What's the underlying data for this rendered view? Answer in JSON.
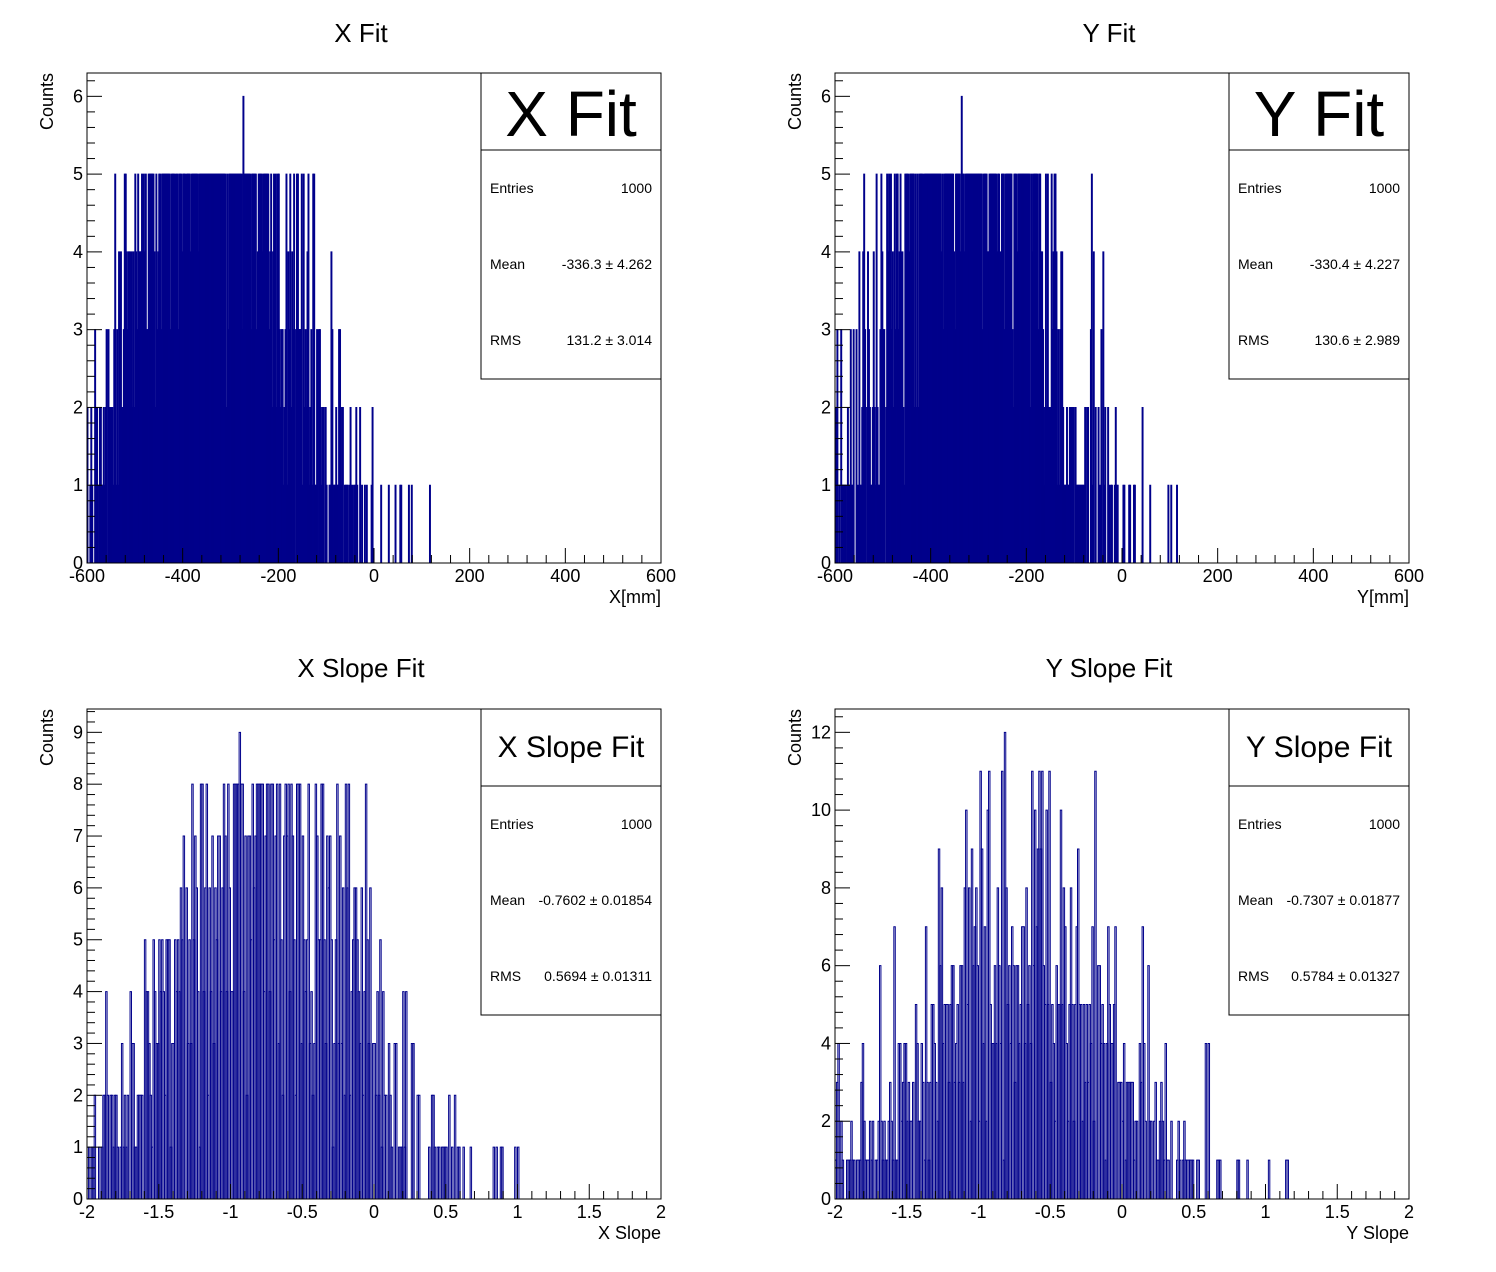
{
  "hist_color": "#00008b",
  "panels": [
    {
      "title": "X Fit",
      "xlabel": "X[mm]",
      "ylabel": "Counts",
      "stats": {
        "title": "X Fit",
        "entries_label": "Entries",
        "entries": "1000",
        "mean_label": "Mean",
        "mean": "-336.3 ±  4.262",
        "rms_label": "RMS",
        "rms": "131.2 ±  3.014"
      }
    },
    {
      "title": "Y Fit",
      "xlabel": "Y[mm]",
      "ylabel": "Counts",
      "stats": {
        "title": "Y Fit",
        "entries_label": "Entries",
        "entries": "1000",
        "mean_label": "Mean",
        "mean": "-330.4 ±  4.227",
        "rms_label": "RMS",
        "rms": "130.6 ±  2.989"
      }
    },
    {
      "title": "X Slope Fit",
      "xlabel": "X Slope",
      "ylabel": "Counts",
      "stats": {
        "title": "X Slope Fit",
        "entries_label": "Entries",
        "entries": "1000",
        "mean_label": "Mean",
        "mean": "-0.7602 ± 0.01854",
        "rms_label": "RMS",
        "rms": "0.5694 ± 0.01311"
      }
    },
    {
      "title": "Y Slope Fit",
      "xlabel": "Y Slope",
      "ylabel": "Counts",
      "stats": {
        "title": "Y Slope Fit",
        "entries_label": "Entries",
        "entries": "1000",
        "mean_label": "Mean",
        "mean": "-0.7307 ± 0.01877",
        "rms_label": "RMS",
        "rms": "0.5784 ± 0.01327"
      }
    }
  ],
  "chart_data": [
    {
      "type": "bar",
      "title": "X Fit",
      "xlabel": "X[mm]",
      "ylabel": "Counts",
      "xlim": [
        -600,
        600
      ],
      "ylim": [
        0,
        6.3
      ],
      "xticks": [
        -600,
        -400,
        -200,
        0,
        200,
        400,
        600
      ],
      "yticks": [
        0,
        1,
        2,
        3,
        4,
        5,
        6
      ],
      "bin_width": 2,
      "peak_count": 6,
      "peak_x": -273,
      "mean": -336.3,
      "rms": 131.2,
      "entries": 1000
    },
    {
      "type": "bar",
      "title": "Y Fit",
      "xlabel": "Y[mm]",
      "ylabel": "Counts",
      "xlim": [
        -600,
        600
      ],
      "ylim": [
        0,
        6.3
      ],
      "xticks": [
        -600,
        -400,
        -200,
        0,
        200,
        400,
        600
      ],
      "yticks": [
        0,
        1,
        2,
        3,
        4,
        5,
        6
      ],
      "bin_width": 2,
      "peak_count": 6,
      "peak_x": -335,
      "mean": -330.4,
      "rms": 130.6,
      "entries": 1000
    },
    {
      "type": "bar",
      "title": "X Slope Fit",
      "xlabel": "X Slope",
      "ylabel": "Counts",
      "xlim": [
        -2,
        2
      ],
      "ylim": [
        0,
        9.45
      ],
      "xticks": [
        -2,
        -1.5,
        -1,
        -0.5,
        0,
        0.5,
        1,
        1.5,
        2
      ],
      "yticks": [
        0,
        1,
        2,
        3,
        4,
        5,
        6,
        7,
        8,
        9
      ],
      "bin_width": 0.01,
      "peak_count": 9,
      "peak_x": -0.94,
      "mean": -0.7602,
      "rms": 0.5694,
      "entries": 1000
    },
    {
      "type": "bar",
      "title": "Y Slope Fit",
      "xlabel": "Y Slope",
      "ylabel": "Counts",
      "xlim": [
        -2,
        2
      ],
      "ylim": [
        0,
        12.6
      ],
      "xticks": [
        -2,
        -1.5,
        -1,
        -0.5,
        0,
        0.5,
        1,
        1.5,
        2
      ],
      "yticks": [
        0,
        2,
        4,
        6,
        8,
        10,
        12
      ],
      "bin_width": 0.01,
      "peak_count": 12,
      "peak_x": -0.81,
      "mean": -0.7307,
      "rms": 0.5784,
      "entries": 1000
    }
  ]
}
